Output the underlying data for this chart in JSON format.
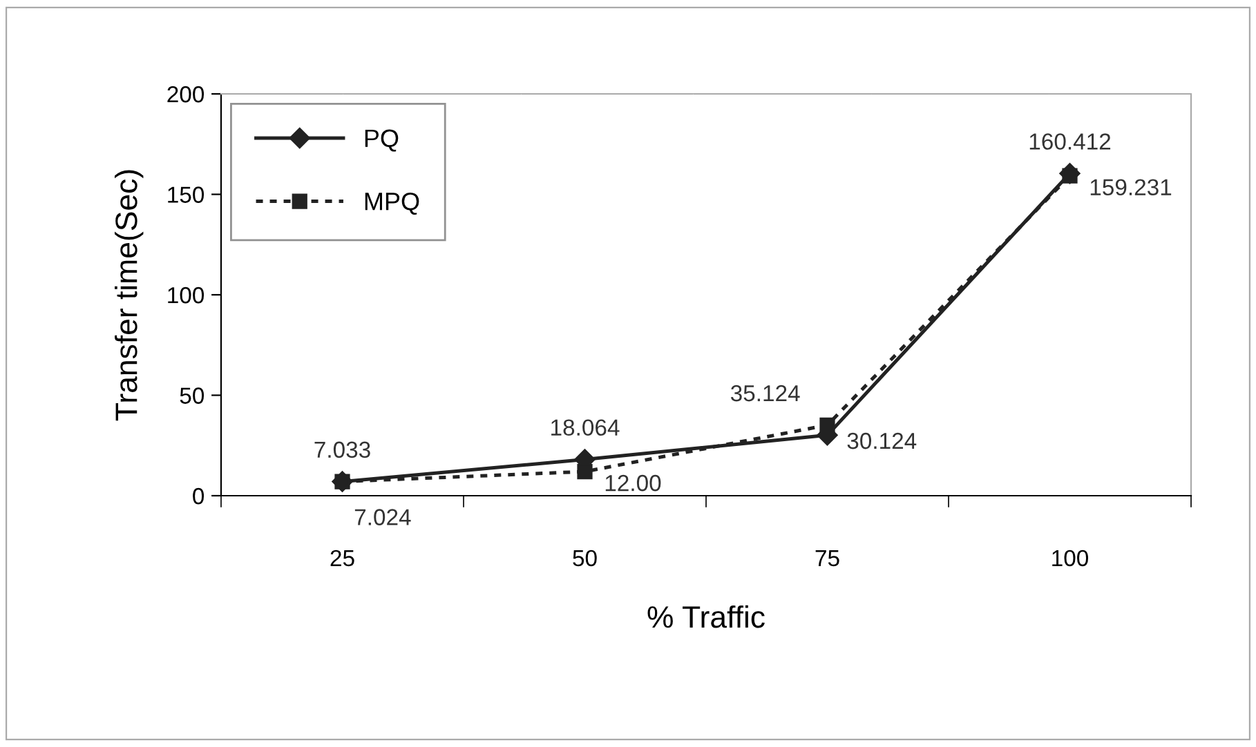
{
  "chart_data": {
    "type": "line",
    "xlabel": "% Traffic",
    "ylabel": "Transfer time(Sec)",
    "categories": [
      "25",
      "50",
      "75",
      "100"
    ],
    "ylim": [
      0,
      200
    ],
    "yticks": [
      0,
      50,
      100,
      150,
      200
    ],
    "grid": false,
    "legend": "top left",
    "series": [
      {
        "name": "PQ",
        "color": "#222222",
        "marker": "diamond",
        "line_style": "solid",
        "values": [
          7.033,
          18.064,
          30.124,
          160.412
        ],
        "value_labels": [
          "7.033",
          "18.064",
          "30.124",
          "160.412"
        ]
      },
      {
        "name": "MPQ",
        "color": "#222222",
        "marker": "square",
        "line_style": "dotted",
        "values": [
          7.024,
          12.0,
          35.124,
          159.231
        ],
        "value_labels": [
          "7.024",
          "12.00",
          "35.124",
          "159.231"
        ]
      }
    ]
  }
}
